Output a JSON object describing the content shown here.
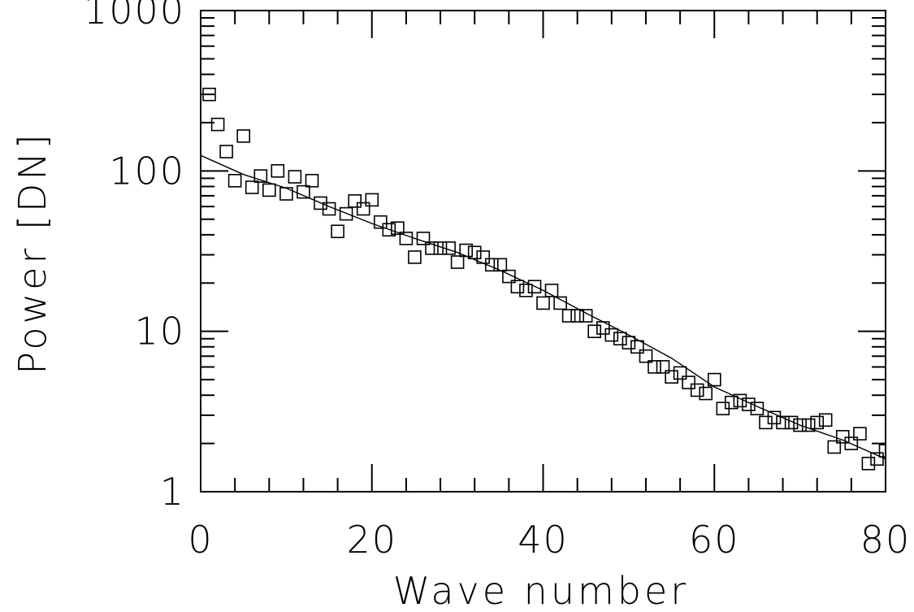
{
  "chart_data": {
    "type": "scatter",
    "title": "",
    "xlabel": "Wave number",
    "ylabel": "Power [DN]",
    "xlim": [
      0,
      80
    ],
    "ylim": [
      1,
      1000
    ],
    "yscale": "log",
    "grid": false,
    "legend": "none",
    "x_ticks": [
      0,
      20,
      40,
      60,
      80
    ],
    "x_tick_labels": [
      "0",
      "20",
      "40",
      "60",
      "80"
    ],
    "y_ticks": [
      1,
      10,
      100,
      1000
    ],
    "y_tick_labels": [
      "1",
      "10",
      "100",
      "1000"
    ],
    "series": [
      {
        "kind": "points",
        "marker": "open-square",
        "x": [
          1,
          2,
          3,
          4,
          5,
          6,
          7,
          8,
          9,
          10,
          11,
          12,
          13,
          14,
          15,
          16,
          17,
          18,
          19,
          20,
          21,
          22,
          23,
          24,
          25,
          26,
          27,
          28,
          29,
          30,
          31,
          32,
          33,
          34,
          35,
          36,
          37,
          38,
          39,
          40,
          41,
          42,
          43,
          44,
          45,
          46,
          47,
          48,
          49,
          50,
          51,
          52,
          53,
          54,
          55,
          56,
          57,
          58,
          59,
          60,
          61,
          62,
          63,
          64,
          65,
          66,
          67,
          68,
          69,
          70,
          71,
          72,
          73,
          74,
          75,
          76,
          77,
          78,
          79,
          80
        ],
        "y": [
          300,
          195,
          132,
          87,
          165,
          79,
          93,
          76,
          100,
          72,
          92,
          74,
          87,
          63,
          58,
          42,
          54,
          65,
          58,
          66,
          48,
          43,
          44,
          38,
          29,
          38,
          33,
          33,
          33,
          27,
          32,
          31,
          29,
          26,
          26,
          22,
          19,
          18,
          19,
          15,
          18,
          15,
          12.5,
          12.5,
          12.5,
          10,
          10.5,
          9.5,
          9,
          8.5,
          8,
          7,
          6,
          6,
          5.2,
          5.5,
          4.8,
          4.3,
          4.1,
          5,
          3.3,
          3.6,
          3.7,
          3.5,
          3.3,
          2.7,
          2.9,
          2.7,
          2.7,
          2.6,
          2.6,
          2.7,
          2.8,
          1.9,
          2.2,
          2,
          2.3,
          1.5,
          1.6,
          1.8
        ]
      },
      {
        "kind": "fit-line",
        "x": [
          0,
          5,
          10,
          15,
          20,
          25,
          30,
          35,
          40,
          45,
          50,
          55,
          60,
          65,
          70,
          75,
          80
        ],
        "y": [
          125,
          95,
          78,
          60,
          47,
          38,
          31,
          24,
          18,
          13,
          9.5,
          6.8,
          4.5,
          3.4,
          2.6,
          2.1,
          1.6
        ]
      }
    ]
  }
}
